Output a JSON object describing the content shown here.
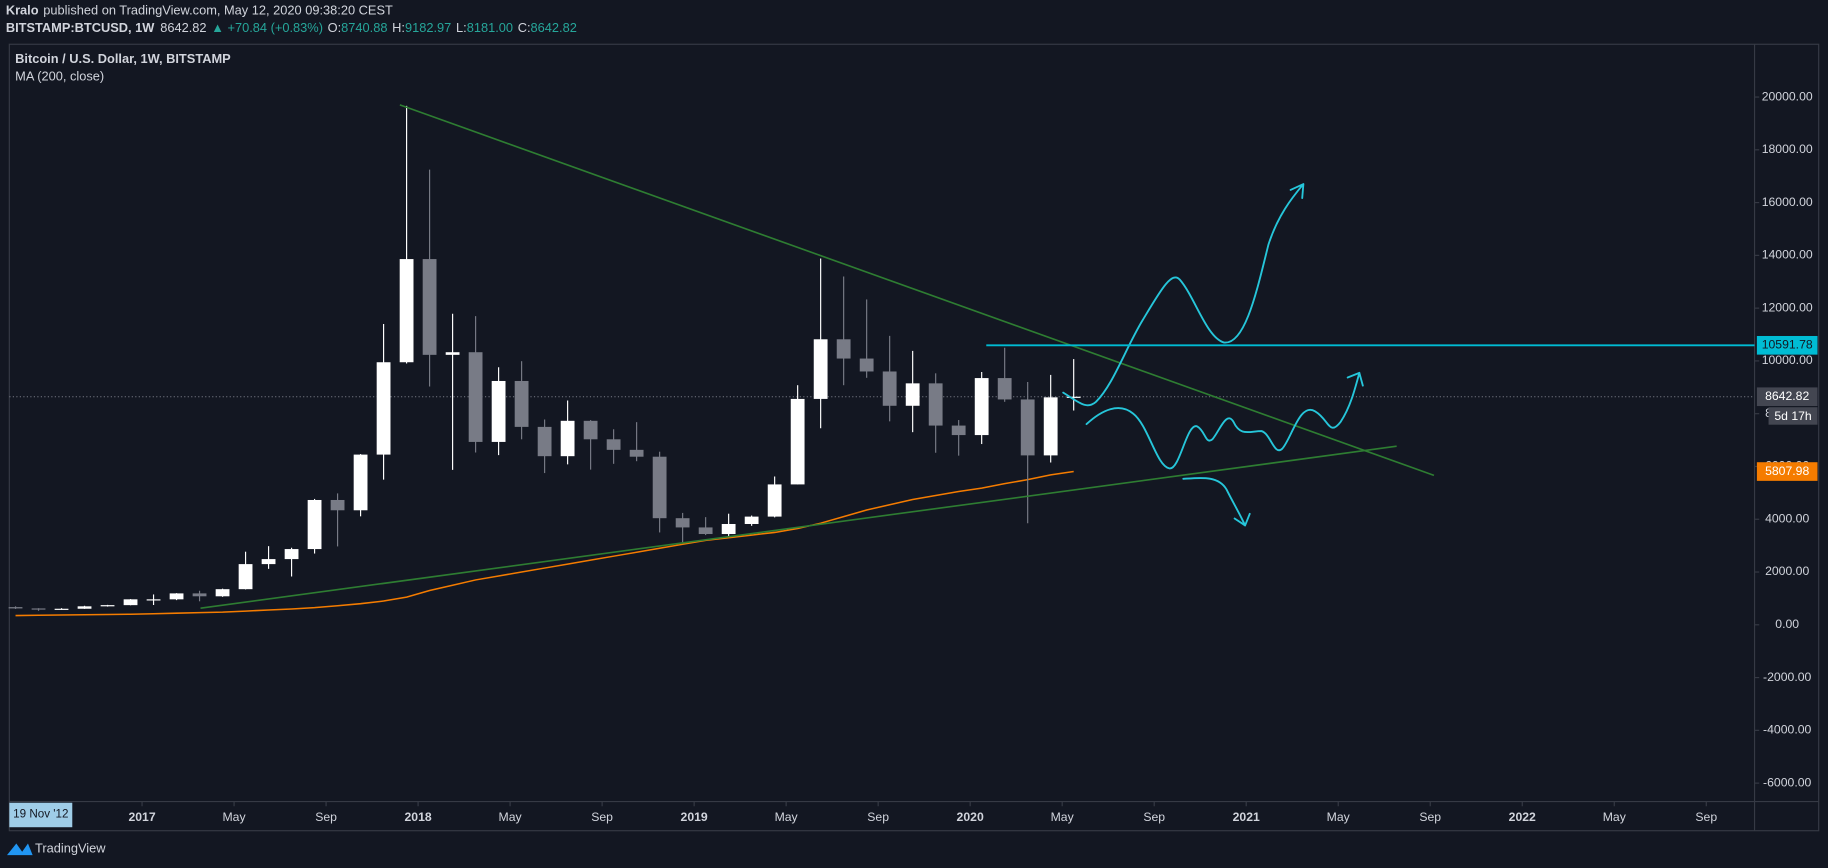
{
  "header": {
    "author": "Kralo",
    "published": "published on TradingView.com, May 12, 2020 09:38:20 CEST",
    "symbol": "BITSTAMP:BTCUSD, 1W",
    "price": "8642.82",
    "change": "▲ +70.84 (+0.83%)",
    "ohlc": [
      {
        "label": "O:",
        "value": "8740.88"
      },
      {
        "label": "H:",
        "value": "9182.97"
      },
      {
        "label": "L:",
        "value": "8181.00"
      },
      {
        "label": "C:",
        "value": "8642.82"
      }
    ]
  },
  "footer": {
    "brand": "TradingView"
  },
  "chart_data": {
    "type": "candlestick",
    "title": "Bitcoin / U.S. Dollar, 1W, BITSTAMP",
    "crosshair_label": "19 Nov '12",
    "x": [
      "2016-07",
      "2016-08",
      "2016-09",
      "2016-10",
      "2016-11",
      "2016-12",
      "2017-01",
      "2017-02",
      "2017-03",
      "2017-04",
      "2017-05",
      "2017-06",
      "2017-07",
      "2017-08",
      "2017-09",
      "2017-10",
      "2017-11",
      "2017-12",
      "2018-01",
      "2018-02",
      "2018-03",
      "2018-04",
      "2018-05",
      "2018-06",
      "2018-07",
      "2018-08",
      "2018-09",
      "2018-10",
      "2018-11",
      "2018-12",
      "2019-01",
      "2019-02",
      "2019-03",
      "2019-04",
      "2019-05",
      "2019-06",
      "2019-07",
      "2019-08",
      "2019-09",
      "2019-10",
      "2019-11",
      "2019-12",
      "2020-01",
      "2020-02",
      "2020-03",
      "2020-04",
      "2020-05"
    ],
    "candles": {
      "up_color": "#ffffff",
      "down_color": "#787b86",
      "open": [
        670,
        620,
        575,
        608,
        700,
        745,
        965,
        965,
        1190,
        1080,
        1350,
        2300,
        2490,
        2870,
        4730,
        4340,
        6450,
        9950,
        13860,
        10230,
        10330,
        6930,
        9240,
        7500,
        6390,
        7730,
        7030,
        6630,
        6370,
        4040,
        3690,
        3440,
        3820,
        4100,
        5320,
        8560,
        10820,
        10090,
        9600,
        8300,
        9150,
        7550,
        7190,
        9350,
        8540,
        6420,
        8620
      ],
      "high": [
        700,
        630,
        630,
        720,
        755,
        975,
        1150,
        1200,
        1290,
        1370,
        2770,
        2980,
        2920,
        4770,
        4980,
        6470,
        11400,
        19666,
        17250,
        11790,
        11700,
        9760,
        9990,
        7780,
        8500,
        7760,
        7410,
        7680,
        6560,
        4240,
        4080,
        4210,
        4140,
        5620,
        9080,
        13880,
        13200,
        12330,
        10950,
        10380,
        9530,
        7760,
        9580,
        10500,
        9200,
        9470,
        10070
      ],
      "low": [
        600,
        530,
        570,
        605,
        690,
        740,
        750,
        935,
        890,
        1060,
        1340,
        2120,
        1830,
        2700,
        2970,
        4110,
        5500,
        9900,
        9030,
        5870,
        6530,
        6430,
        7030,
        5750,
        6080,
        5880,
        6100,
        6200,
        3500,
        3120,
        3400,
        3350,
        3750,
        4070,
        5320,
        7450,
        9080,
        9360,
        7710,
        7300,
        6520,
        6410,
        6850,
        8450,
        3850,
        6150,
        8120
      ],
      "close": [
        620,
        575,
        608,
        700,
        745,
        965,
        965,
        1190,
        1080,
        1350,
        2300,
        2490,
        2870,
        4730,
        4340,
        6450,
        9950,
        13860,
        10230,
        10330,
        6930,
        9240,
        7500,
        6390,
        7730,
        7030,
        6630,
        6370,
        4040,
        3690,
        3440,
        3820,
        4100,
        5320,
        8560,
        10820,
        10090,
        9600,
        8300,
        9150,
        7550,
        7190,
        9350,
        8540,
        6420,
        8620,
        8642.82
      ]
    },
    "ma": {
      "name": "MA (200, close)",
      "color": "#f57c00",
      "values": [
        350,
        360,
        370,
        380,
        390,
        400,
        420,
        440,
        460,
        480,
        520,
        560,
        600,
        650,
        720,
        800,
        900,
        1050,
        1300,
        1500,
        1700,
        1850,
        2000,
        2150,
        2300,
        2450,
        2600,
        2750,
        2900,
        3050,
        3200,
        3300,
        3400,
        3500,
        3650,
        3850,
        4100,
        4350,
        4550,
        4750,
        4900,
        5050,
        5180,
        5350,
        5500,
        5680,
        5807.98
      ]
    },
    "horizontal_line": {
      "value": 10591.78,
      "color": "#00bcd4"
    },
    "last_price": {
      "value": 8642.82,
      "color": "#434651",
      "countdown": "5d 17h"
    },
    "ma_label": {
      "value": 5807.98,
      "color": "#f57c00"
    },
    "xlim": [
      "2016-07-08",
      "2022-11-04"
    ],
    "xticks": [
      {
        "value": "2017-01",
        "label": "2017"
      },
      {
        "value": "2017-05",
        "label": "May"
      },
      {
        "value": "2017-09",
        "label": "Sep"
      },
      {
        "value": "2018-01",
        "label": "2018"
      },
      {
        "value": "2018-05",
        "label": "May"
      },
      {
        "value": "2018-09",
        "label": "Sep"
      },
      {
        "value": "2019-01",
        "label": "2019"
      },
      {
        "value": "2019-05",
        "label": "May"
      },
      {
        "value": "2019-09",
        "label": "Sep"
      },
      {
        "value": "2020-01",
        "label": "2020"
      },
      {
        "value": "2020-05",
        "label": "May"
      },
      {
        "value": "2020-09",
        "label": "Sep"
      },
      {
        "value": "2021-01",
        "label": "2021"
      },
      {
        "value": "2021-05",
        "label": "May"
      },
      {
        "value": "2021-09",
        "label": "Sep"
      },
      {
        "value": "2022-01",
        "label": "2022"
      },
      {
        "value": "2022-05",
        "label": "May"
      },
      {
        "value": "2022-09",
        "label": "Sep"
      }
    ],
    "ylim": [
      -6700,
      22000
    ],
    "yticks": [
      {
        "value": -6000,
        "label": "-6000.00"
      },
      {
        "value": -4000,
        "label": "-4000.00"
      },
      {
        "value": -2000,
        "label": "-2000.00"
      },
      {
        "value": 0,
        "label": "0.00"
      },
      {
        "value": 2000,
        "label": "2000.00"
      },
      {
        "value": 4000,
        "label": "4000.00"
      },
      {
        "value": 6000,
        "label": "6000.00"
      },
      {
        "value": 8000,
        "label": "8000.00"
      },
      {
        "value": 10000,
        "label": "10000.00"
      },
      {
        "value": 12000,
        "label": "12000.00"
      },
      {
        "value": 14000,
        "label": "14000.00"
      },
      {
        "value": 16000,
        "label": "16000.00"
      },
      {
        "value": 18000,
        "label": "18000.00"
      },
      {
        "value": 20000,
        "label": "20000.00"
      }
    ]
  }
}
